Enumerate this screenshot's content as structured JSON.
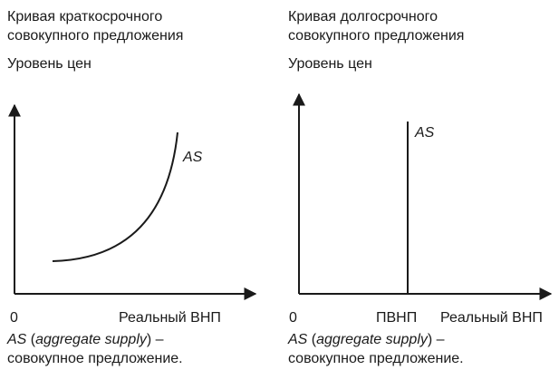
{
  "left_panel": {
    "title_line1": "Кривая краткосрочного",
    "title_line2": "совокупного предложения",
    "y_label": "Уровень цен",
    "curve_label": "AS",
    "origin_label": "0",
    "x_label": "Реальный ВНП",
    "note_abbr": "AS",
    "note_paren": "(",
    "note_en": "aggregate supply",
    "note_close": ") –",
    "note_line2": "совокупное предложение."
  },
  "right_panel": {
    "title_line1": "Кривая долгосрочного",
    "title_line2": "совокупного предложения",
    "y_label": "Уровень цен",
    "curve_label": "AS",
    "origin_label": "0",
    "tick_label": "ПВНП",
    "x_label": "Реальный ВНП",
    "note_abbr": "AS",
    "note_paren": "(",
    "note_en": "aggregate supply",
    "note_close": ") –",
    "note_line2": "совокупное предложение."
  },
  "colors": {
    "line": "#1a1a1a",
    "text": "#1a1a1a",
    "background": "#ffffff"
  }
}
